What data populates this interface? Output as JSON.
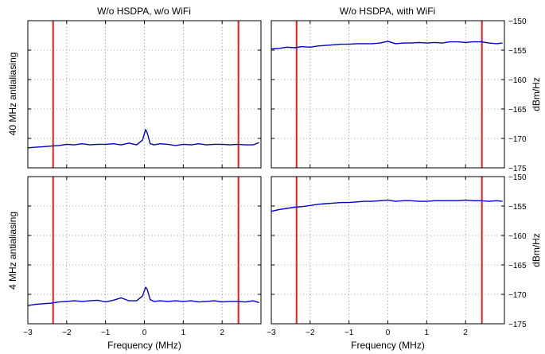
{
  "column_titles": [
    "W/o HSDPA, w/o WiFi",
    "W/o HSDPA, with WiFi"
  ],
  "row_labels": [
    "40 MHz antialiasing",
    "4 MHz antialiasing"
  ],
  "colors": {
    "trace": "#0000cc",
    "marker": "#e32020",
    "grid": "#555555"
  },
  "chart_data": [
    {
      "type": "line",
      "title": "W/o HSDPA, w/o WiFi",
      "ylabel": "40 MHz antialiasing",
      "xlabel": "",
      "xlim": [
        -3,
        3
      ],
      "ylim": [
        -175,
        -150
      ],
      "xticks": [
        -3,
        -2,
        -1,
        0,
        1,
        2
      ],
      "yticks": [],
      "grid": true,
      "vlines": [
        -2.35,
        2.42
      ],
      "series": [
        {
          "x": [
            -3,
            -2.8,
            -2.6,
            -2.4,
            -2.2,
            -2,
            -1.8,
            -1.6,
            -1.4,
            -1.2,
            -1,
            -0.8,
            -0.6,
            -0.4,
            -0.2,
            -0.05,
            0.03,
            0.07,
            0.15,
            0.25,
            0.4,
            0.6,
            0.8,
            1,
            1.2,
            1.4,
            1.6,
            1.8,
            2,
            2.2,
            2.4,
            2.6,
            2.8,
            2.95
          ],
          "y": [
            -171.6,
            -171.5,
            -171.4,
            -171.3,
            -171.2,
            -171,
            -171.1,
            -170.9,
            -171.1,
            -171,
            -171,
            -170.9,
            -171.1,
            -170.8,
            -171.1,
            -170.3,
            -168.5,
            -169,
            -170.9,
            -171.1,
            -170.9,
            -171,
            -171.2,
            -171,
            -171.1,
            -170.9,
            -171.1,
            -171,
            -171,
            -171.1,
            -171,
            -171.1,
            -171.1,
            -170.7
          ]
        }
      ]
    },
    {
      "type": "line",
      "title": "W/o HSDPA, with WiFi",
      "ylabel": "dBm/Hz",
      "xlabel": "",
      "xlim": [
        -3,
        3
      ],
      "ylim": [
        -175,
        -150
      ],
      "xticks": [
        -3,
        -2,
        -1,
        0,
        1,
        2
      ],
      "yticks": [
        -150,
        -155,
        -160,
        -165,
        -170,
        -175
      ],
      "grid": true,
      "vlines": [
        -2.35,
        2.42
      ],
      "series": [
        {
          "x": [
            -3,
            -2.8,
            -2.6,
            -2.4,
            -2.2,
            -2,
            -1.8,
            -1.6,
            -1.4,
            -1.2,
            -1,
            -0.8,
            -0.6,
            -0.4,
            -0.2,
            0,
            0.2,
            0.4,
            0.6,
            0.8,
            1,
            1.2,
            1.4,
            1.6,
            1.8,
            2,
            2.2,
            2.4,
            2.6,
            2.8,
            2.95
          ],
          "y": [
            -154.8,
            -154.7,
            -154.5,
            -154.6,
            -154.4,
            -154.5,
            -154.3,
            -154.2,
            -154.1,
            -154,
            -154,
            -153.9,
            -153.9,
            -153.9,
            -153.8,
            -153.5,
            -153.9,
            -153.8,
            -153.8,
            -153.7,
            -153.8,
            -153.7,
            -153.8,
            -153.6,
            -153.6,
            -153.7,
            -153.6,
            -153.6,
            -153.8,
            -153.9,
            -153.8
          ]
        }
      ]
    },
    {
      "type": "line",
      "title": "",
      "ylabel": "4 MHz antialiasing",
      "xlabel": "Frequency (MHz)",
      "xlim": [
        -3,
        3
      ],
      "ylim": [
        -175,
        -150
      ],
      "xticks": [
        -3,
        -2,
        -1,
        0,
        1,
        2
      ],
      "yticks": [],
      "grid": true,
      "vlines": [
        -2.35,
        2.42
      ],
      "series": [
        {
          "x": [
            -3,
            -2.8,
            -2.6,
            -2.4,
            -2.2,
            -2,
            -1.8,
            -1.6,
            -1.4,
            -1.2,
            -1,
            -0.8,
            -0.6,
            -0.4,
            -0.2,
            -0.05,
            0.03,
            0.07,
            0.15,
            0.25,
            0.4,
            0.6,
            0.8,
            1,
            1.2,
            1.4,
            1.6,
            1.8,
            2,
            2.2,
            2.4,
            2.6,
            2.8,
            2.95
          ],
          "y": [
            -171.9,
            -171.7,
            -171.6,
            -171.5,
            -171.3,
            -171.2,
            -171.1,
            -171.2,
            -171.1,
            -171,
            -171.3,
            -171,
            -170.6,
            -171.1,
            -171.1,
            -170.3,
            -168.8,
            -169.1,
            -170.9,
            -171.2,
            -171.1,
            -171.2,
            -171.1,
            -171.2,
            -171.1,
            -171.3,
            -171.2,
            -171.1,
            -171.3,
            -171.2,
            -171.2,
            -171.3,
            -171.1,
            -171.4
          ]
        }
      ]
    },
    {
      "type": "line",
      "title": "",
      "ylabel": "dBm/Hz",
      "xlabel": "Frequency (MHz)",
      "xlim": [
        -3,
        3
      ],
      "ylim": [
        -175,
        -150
      ],
      "xticks": [
        -3,
        -2,
        -1,
        0,
        1,
        2
      ],
      "yticks": [
        -150,
        -155,
        -160,
        -165,
        -170,
        -175
      ],
      "grid": true,
      "vlines": [
        -2.35,
        2.42
      ],
      "series": [
        {
          "x": [
            -3,
            -2.8,
            -2.6,
            -2.4,
            -2.2,
            -2,
            -1.8,
            -1.6,
            -1.4,
            -1.2,
            -1,
            -0.8,
            -0.6,
            -0.4,
            -0.2,
            0,
            0.2,
            0.4,
            0.6,
            0.8,
            1,
            1.2,
            1.4,
            1.6,
            1.8,
            2,
            2.2,
            2.4,
            2.6,
            2.8,
            2.95
          ],
          "y": [
            -155.9,
            -155.6,
            -155.4,
            -155.2,
            -155.1,
            -154.9,
            -154.7,
            -154.6,
            -154.5,
            -154.4,
            -154.4,
            -154.3,
            -154.2,
            -154.2,
            -154.1,
            -154,
            -154.2,
            -154.1,
            -154.1,
            -154.2,
            -154.2,
            -154.1,
            -154.1,
            -154.1,
            -154.1,
            -154,
            -154.1,
            -154.1,
            -154.2,
            -154.1,
            -154.2
          ]
        }
      ]
    }
  ]
}
